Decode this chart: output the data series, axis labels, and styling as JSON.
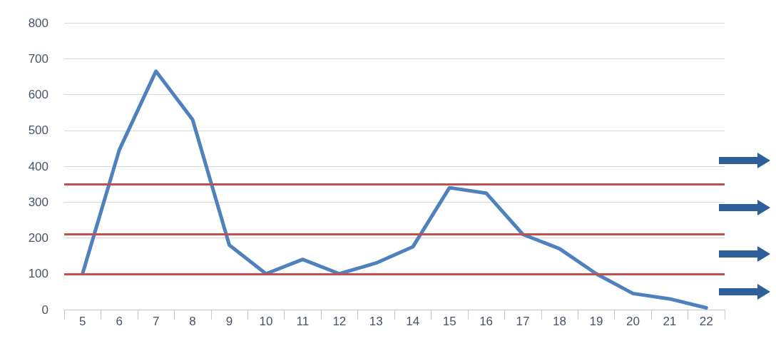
{
  "chart_data": {
    "type": "line",
    "categories": [
      "5",
      "6",
      "7",
      "8",
      "9",
      "10",
      "11",
      "12",
      "13",
      "14",
      "15",
      "16",
      "17",
      "18",
      "19",
      "20",
      "21",
      "22"
    ],
    "series": [
      {
        "color": "#4f81bd",
        "values": [
          100,
          445,
          665,
          530,
          180,
          100,
          140,
          100,
          130,
          175,
          340,
          325,
          210,
          170,
          100,
          45,
          30,
          5
        ]
      }
    ],
    "ylim": [
      0,
      800
    ],
    "yticks": [
      0,
      100,
      200,
      300,
      400,
      500,
      600,
      700,
      800
    ],
    "grid": "y",
    "marker": "none",
    "line_style": "solid",
    "ref_lines": [
      {
        "axis": "y",
        "value": 100,
        "color": "#c0504d"
      },
      {
        "axis": "y",
        "value": 210,
        "color": "#c0504d"
      },
      {
        "axis": "y",
        "value": 350,
        "color": "#c0504d"
      }
    ]
  }
}
